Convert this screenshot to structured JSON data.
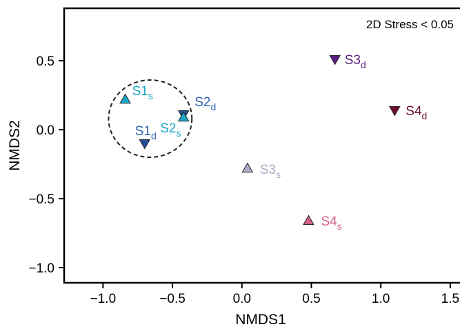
{
  "chart_data": {
    "type": "scatter",
    "xlabel": "NMDS1",
    "ylabel": "NMDS2",
    "xlim": [
      -1.28,
      1.6
    ],
    "ylim": [
      -1.11,
      0.88
    ],
    "xticks": [
      -1.0,
      -0.5,
      0.0,
      0.5,
      1.0,
      1.5
    ],
    "xtick_labels": [
      "−1.0",
      "−0.5",
      "0.0",
      "0.5",
      "1.0",
      "1.5"
    ],
    "yticks": [
      0.5,
      0.0,
      -0.5,
      -1.0
    ],
    "ytick_labels": [
      "0.5",
      "0.0",
      "−0.5",
      "−1.0"
    ],
    "annotation": "2D Stress < 0.05",
    "grid": false,
    "points": [
      {
        "label": "S1",
        "sub": "s",
        "x": -0.84,
        "y": 0.22,
        "marker": "triangle-up",
        "color": "#1ba7c4",
        "text_color": "#1ba7c4"
      },
      {
        "label": "S1",
        "sub": "d",
        "x": -0.7,
        "y": -0.1,
        "marker": "triangle-down",
        "color": "#1f4e96",
        "text_color": "#2a5fb0"
      },
      {
        "label": "S2",
        "sub": "d",
        "x": -0.42,
        "y": 0.11,
        "marker": "triangle-down",
        "color": "#1f4e96",
        "text_color": "#2a5fb0"
      },
      {
        "label": "S2",
        "sub": "s",
        "x": -0.42,
        "y": 0.09,
        "marker": "triangle-up",
        "color": "#1ba7c4",
        "text_color": "#1ba7c4"
      },
      {
        "label": "S3",
        "sub": "d",
        "x": 0.67,
        "y": 0.51,
        "marker": "triangle-down",
        "color": "#5b1f80",
        "text_color": "#5b1f80"
      },
      {
        "label": "S4",
        "sub": "d",
        "x": 1.1,
        "y": 0.14,
        "marker": "triangle-down",
        "color": "#6e0f2e",
        "text_color": "#6e0f2e"
      },
      {
        "label": "S3",
        "sub": "s",
        "x": 0.04,
        "y": -0.28,
        "marker": "triangle-up",
        "color": "#b3a6c8",
        "text_color": "#b3a6c8"
      },
      {
        "label": "S4",
        "sub": "s",
        "x": 0.48,
        "y": -0.66,
        "marker": "triangle-up",
        "color": "#d45f8a",
        "text_color": "#d45f8a"
      }
    ],
    "ellipse": {
      "cx": -0.66,
      "cy": 0.08,
      "rx": 0.3,
      "ry": 0.28,
      "style": "dashed",
      "color": "#222222"
    }
  }
}
